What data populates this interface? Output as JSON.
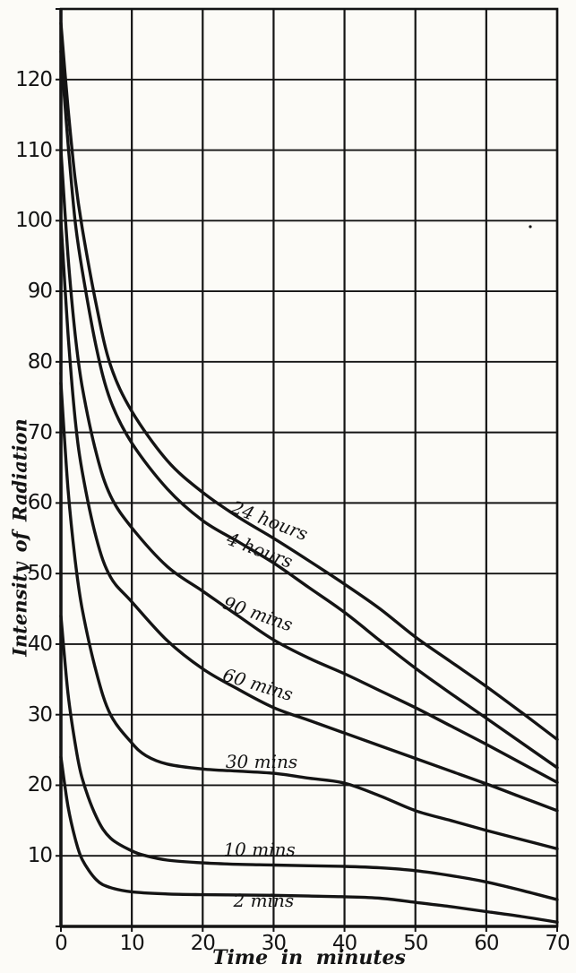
{
  "paper_color": "#fcfbf7",
  "ink_color": "#141414",
  "chart_data": {
    "type": "line",
    "title": "",
    "xlabel": "Time in minutes",
    "ylabel": "Intensity of Radiation",
    "xlim": [
      0,
      70
    ],
    "ylim": [
      0,
      130
    ],
    "grid": true,
    "grid_step_x": 10,
    "grid_step_y": 10,
    "x_ticks": [
      0,
      10,
      20,
      30,
      40,
      50,
      60,
      70
    ],
    "y_ticks": [
      10,
      20,
      30,
      40,
      50,
      60,
      70,
      80,
      90,
      100,
      110,
      120
    ],
    "legend_position": "inline-labels-on-curves",
    "series": [
      {
        "name": "24-hours",
        "label": "24 hours",
        "label_anchor": {
          "x": 29.5,
          "y": 57.5,
          "rotation": 21
        },
        "points": [
          [
            0,
            128
          ],
          [
            1,
            116
          ],
          [
            2,
            106
          ],
          [
            3,
            99
          ],
          [
            5,
            88
          ],
          [
            7,
            79.5
          ],
          [
            10,
            73
          ],
          [
            15,
            66
          ],
          [
            20,
            61.5
          ],
          [
            25,
            58
          ],
          [
            30,
            55
          ],
          [
            35,
            51.8
          ],
          [
            40,
            48.5
          ],
          [
            45,
            45
          ],
          [
            50,
            41
          ],
          [
            55,
            37.5
          ],
          [
            60,
            34
          ],
          [
            65,
            30.3
          ],
          [
            70,
            26.5
          ]
        ]
      },
      {
        "name": "4-hours",
        "label": "4 hours",
        "label_anchor": {
          "x": 28.0,
          "y": 53.3,
          "rotation": 21
        },
        "points": [
          [
            0,
            124
          ],
          [
            1,
            111
          ],
          [
            2,
            100
          ],
          [
            3,
            93
          ],
          [
            5,
            82
          ],
          [
            7,
            74.5
          ],
          [
            10,
            68.5
          ],
          [
            15,
            62
          ],
          [
            20,
            57.5
          ],
          [
            25,
            54.5
          ],
          [
            30,
            51.5
          ],
          [
            35,
            48
          ],
          [
            40,
            44.5
          ],
          [
            45,
            40.5
          ],
          [
            50,
            36.6
          ],
          [
            55,
            33
          ],
          [
            60,
            29.5
          ],
          [
            65,
            26
          ],
          [
            70,
            22.5
          ]
        ]
      },
      {
        "name": "90-mins",
        "label": "90 mins",
        "label_anchor": {
          "x": 27.8,
          "y": 44.3,
          "rotation": 19
        },
        "points": [
          [
            0,
            110
          ],
          [
            1,
            95
          ],
          [
            2,
            84
          ],
          [
            3,
            76.5
          ],
          [
            5,
            67
          ],
          [
            7,
            61
          ],
          [
            10,
            56.5
          ],
          [
            15,
            51
          ],
          [
            20,
            47.5
          ],
          [
            25,
            44
          ],
          [
            30,
            40.6
          ],
          [
            35,
            38
          ],
          [
            40,
            35.8
          ],
          [
            45,
            33.4
          ],
          [
            50,
            31
          ],
          [
            55,
            28.4
          ],
          [
            60,
            25.8
          ],
          [
            65,
            23.1
          ],
          [
            70,
            20.4
          ]
        ]
      },
      {
        "name": "60-mins",
        "label": "60 mins",
        "label_anchor": {
          "x": 27.8,
          "y": 34.3,
          "rotation": 17
        },
        "points": [
          [
            0,
            100
          ],
          [
            1,
            84
          ],
          [
            2,
            72
          ],
          [
            3,
            64.5
          ],
          [
            5,
            55
          ],
          [
            7,
            49.5
          ],
          [
            10,
            46
          ],
          [
            15,
            40.5
          ],
          [
            20,
            36.5
          ],
          [
            25,
            33.6
          ],
          [
            30,
            31
          ],
          [
            35,
            29.2
          ],
          [
            40,
            27.4
          ],
          [
            45,
            25.6
          ],
          [
            50,
            23.8
          ],
          [
            55,
            22
          ],
          [
            60,
            20.2
          ],
          [
            65,
            18.3
          ],
          [
            70,
            16.4
          ]
        ]
      },
      {
        "name": "30-mins",
        "label": "30 mins",
        "label_anchor": {
          "x": 28.3,
          "y": 23.3,
          "rotation": 0
        },
        "points": [
          [
            0,
            77
          ],
          [
            1,
            62
          ],
          [
            2,
            52
          ],
          [
            3,
            45
          ],
          [
            5,
            36
          ],
          [
            7,
            30
          ],
          [
            10,
            26
          ],
          [
            12,
            24.2
          ],
          [
            15,
            23
          ],
          [
            20,
            22.3
          ],
          [
            25,
            22
          ],
          [
            30,
            21.7
          ],
          [
            35,
            21
          ],
          [
            40,
            20.3
          ],
          [
            45,
            18.5
          ],
          [
            50,
            16.4
          ],
          [
            55,
            15
          ],
          [
            60,
            13.6
          ],
          [
            65,
            12.3
          ],
          [
            70,
            11
          ]
        ]
      },
      {
        "name": "10-mins",
        "label": "10 mins",
        "label_anchor": {
          "x": 28.0,
          "y": 10.9,
          "rotation": 0
        },
        "points": [
          [
            0,
            44
          ],
          [
            1,
            33
          ],
          [
            2,
            26
          ],
          [
            3,
            21
          ],
          [
            5,
            15.5
          ],
          [
            7,
            12.5
          ],
          [
            10,
            10.7
          ],
          [
            12,
            10
          ],
          [
            15,
            9.4
          ],
          [
            20,
            9
          ],
          [
            25,
            8.8
          ],
          [
            30,
            8.7
          ],
          [
            35,
            8.6
          ],
          [
            40,
            8.5
          ],
          [
            45,
            8.3
          ],
          [
            50,
            7.9
          ],
          [
            55,
            7.2
          ],
          [
            60,
            6.3
          ],
          [
            65,
            5.1
          ],
          [
            70,
            3.8
          ]
        ]
      },
      {
        "name": "2-mins",
        "label": "2 mins",
        "label_anchor": {
          "x": 28.6,
          "y": 3.7,
          "rotation": 0
        },
        "points": [
          [
            0,
            24
          ],
          [
            1,
            17
          ],
          [
            2,
            12.5
          ],
          [
            3,
            9.5
          ],
          [
            5,
            6.6
          ],
          [
            7,
            5.5
          ],
          [
            10,
            4.9
          ],
          [
            15,
            4.6
          ],
          [
            20,
            4.5
          ],
          [
            25,
            4.45
          ],
          [
            30,
            4.4
          ],
          [
            35,
            4.3
          ],
          [
            40,
            4.2
          ],
          [
            45,
            4.0
          ],
          [
            50,
            3.4
          ],
          [
            55,
            2.8
          ],
          [
            60,
            2.1
          ],
          [
            65,
            1.4
          ],
          [
            70,
            0.6
          ]
        ]
      }
    ]
  }
}
